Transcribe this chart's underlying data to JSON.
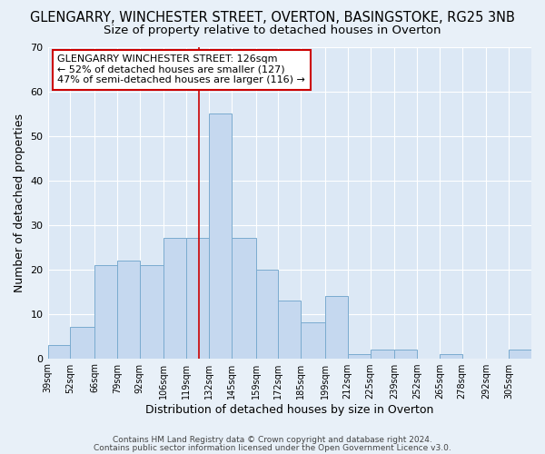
{
  "title": "GLENGARRY, WINCHESTER STREET, OVERTON, BASINGSTOKE, RG25 3NB",
  "subtitle": "Size of property relative to detached houses in Overton",
  "xlabel": "Distribution of detached houses by size in Overton",
  "ylabel": "Number of detached properties",
  "bin_labels": [
    "39sqm",
    "52sqm",
    "66sqm",
    "79sqm",
    "92sqm",
    "106sqm",
    "119sqm",
    "132sqm",
    "145sqm",
    "159sqm",
    "172sqm",
    "185sqm",
    "199sqm",
    "212sqm",
    "225sqm",
    "239sqm",
    "252sqm",
    "265sqm",
    "278sqm",
    "292sqm",
    "305sqm"
  ],
  "bar_values": [
    3,
    7,
    21,
    22,
    21,
    27,
    27,
    55,
    27,
    20,
    13,
    8,
    14,
    1,
    2,
    2,
    0,
    1,
    0,
    0,
    2
  ],
  "bar_color": "#c5d8ef",
  "bar_edge_color": "#7aabcf",
  "vline_x": 126,
  "vline_label": "GLENGARRY WINCHESTER STREET: 126sqm",
  "annotation_line1": "← 52% of detached houses are smaller (127)",
  "annotation_line2": "47% of semi-detached houses are larger (116) →",
  "ylim": [
    0,
    70
  ],
  "yticks": [
    0,
    10,
    20,
    30,
    40,
    50,
    60,
    70
  ],
  "bin_edges": [
    39,
    52,
    66,
    79,
    92,
    106,
    119,
    132,
    145,
    159,
    172,
    185,
    199,
    212,
    225,
    239,
    252,
    265,
    278,
    292,
    305,
    318
  ],
  "background_color": "#e8f0f8",
  "plot_bg_color": "#dce8f5",
  "footer1": "Contains HM Land Registry data © Crown copyright and database right 2024.",
  "footer2": "Contains public sector information licensed under the Open Government Licence v3.0.",
  "title_fontsize": 10.5,
  "subtitle_fontsize": 9.5,
  "box_color": "#cc0000",
  "vline_color": "#cc0000",
  "grid_color": "#c8d8e8"
}
